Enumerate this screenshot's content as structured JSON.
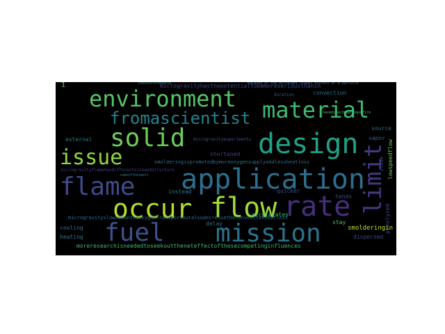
{
  "words": [
    {
      "text": "environment",
      "color": "#54c568"
    },
    {
      "text": "material",
      "color": "#3dbc74"
    },
    {
      "text": "fromascientist",
      "color": "#25838e"
    },
    {
      "text": "solid",
      "color": "#6ccd5a"
    },
    {
      "text": "design",
      "color": "#1fa287"
    },
    {
      "text": "issue",
      "color": "#8fd744"
    },
    {
      "text": "flame",
      "color": "#3e4a89"
    },
    {
      "text": "application",
      "color": "#2d6f8e"
    },
    {
      "text": "limit",
      "color": "#443983"
    },
    {
      "text": "occur",
      "color": "#b5de2b"
    },
    {
      "text": "flow",
      "color": "#a0da39"
    },
    {
      "text": "rate",
      "color": "#472f7d"
    },
    {
      "text": "fuel",
      "color": "#3b528b"
    },
    {
      "text": "mission",
      "color": "#2c728e"
    },
    {
      "text": "microgravityhasthepotentialtobemoreseriousthanin",
      "color": "#3f4889"
    },
    {
      "text": "thesootformedina",
      "color": "#2a788e"
    },
    {
      "text": "convection",
      "color": "#2c718e"
    },
    {
      "text": "because of the different travel history of a particle",
      "color": "#2f6b8e"
    },
    {
      "text": "duration",
      "color": "#355f8d"
    },
    {
      "text": "havedirectbearingonfire",
      "color": "#4ac16d"
    },
    {
      "text": "source",
      "color": "#31688e"
    },
    {
      "text": "vapor",
      "color": "#365d8d"
    },
    {
      "text": "lowspeedflow",
      "color": "#6ece58"
    },
    {
      "text": "close",
      "color": "#3c4f8a"
    },
    {
      "text": "external",
      "color": "#2a768e"
    },
    {
      "text": "microgravityexperiments",
      "color": "#3b528b"
    },
    {
      "text": "shortened",
      "color": "#414487"
    },
    {
      "text": "smolderingispromotedbymoreoxygensupplyandlessheatloss",
      "color": "#2e6e8e"
    },
    {
      "text": "microgravityflamehasdifferentsizeandstructure",
      "color": "#433e85"
    },
    {
      "text": "someofthesmell",
      "color": "#26828e"
    },
    {
      "text": "instead",
      "color": "#2a788e"
    },
    {
      "text": "quicker",
      "color": "#3b528b"
    },
    {
      "text": "accelerates",
      "color": "#3dbc74"
    },
    {
      "text": "delay",
      "color": "#2c728e"
    },
    {
      "text": "tends",
      "color": "#3e4c8a"
    },
    {
      "text": "microgravityslowsdowntheoxygentransportbutalsodecreasetheconvectiveheatloss",
      "color": "#2f6c8e"
    },
    {
      "text": "stay",
      "color": "#4ec36b"
    },
    {
      "text": "pyrolyzed",
      "color": "#3f4788"
    },
    {
      "text": "smolderingin",
      "color": "#c2df23"
    },
    {
      "text": "cooling",
      "color": "#2d718e"
    },
    {
      "text": "heating",
      "color": "#2a788e"
    },
    {
      "text": "dispersed",
      "color": "#3e4a89"
    },
    {
      "text": "moreresearchisneededtoseekouttheneteffectofthesecompetinginfluences",
      "color": "#3fbc73"
    },
    {
      "text": "1",
      "color": "#6ece58"
    }
  ]
}
